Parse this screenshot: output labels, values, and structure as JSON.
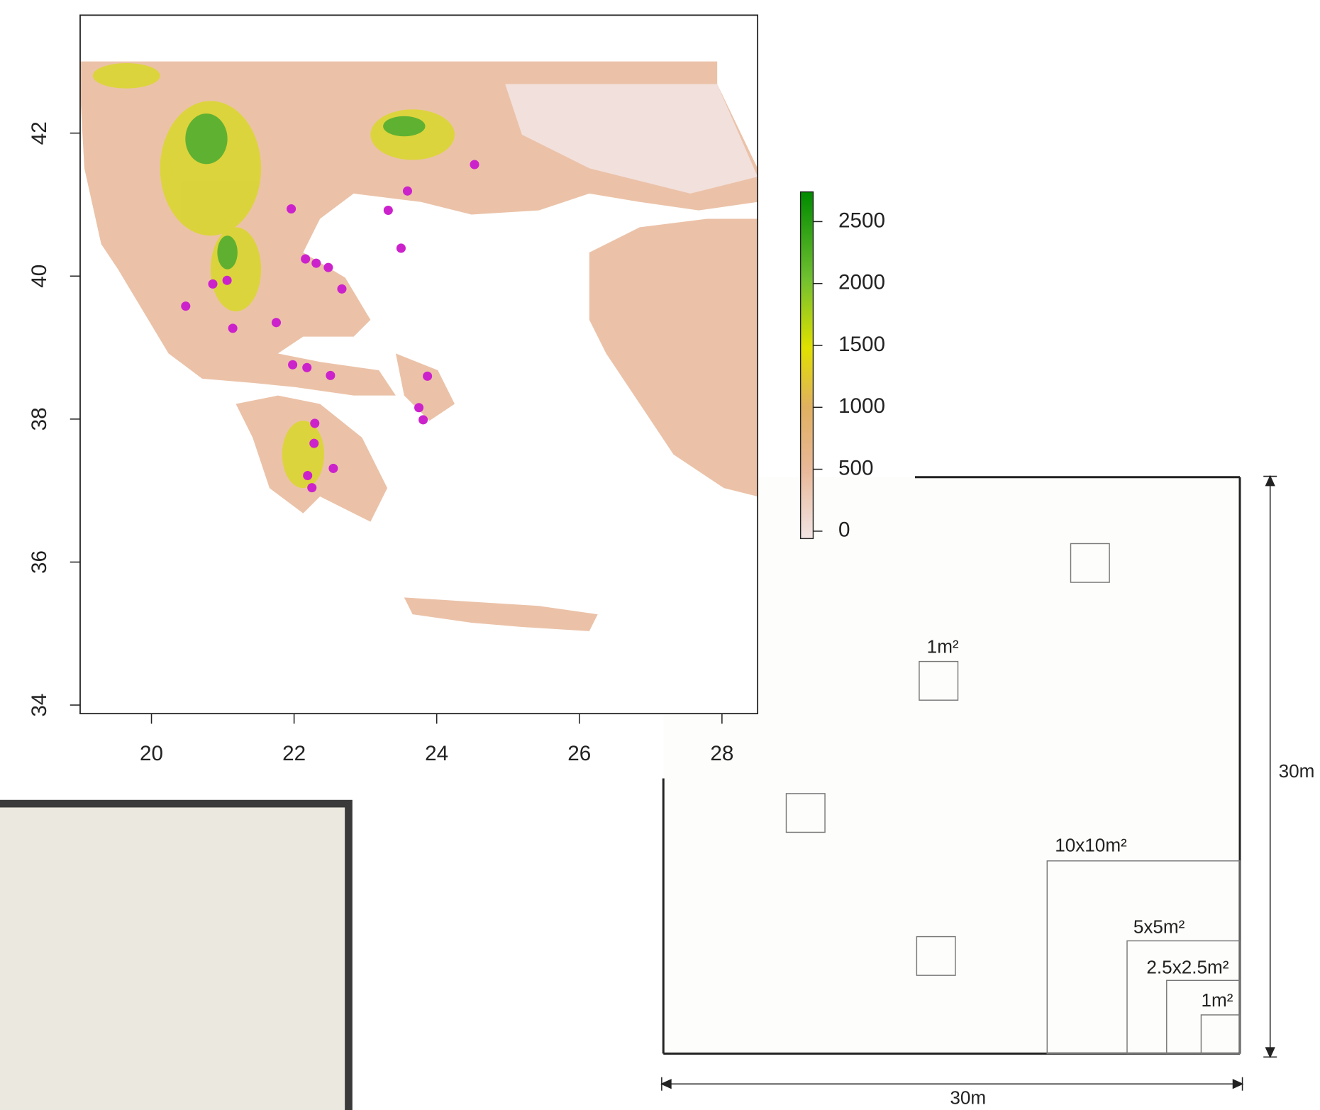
{
  "map": {
    "xlim": [
      19,
      28.5
    ],
    "ylim": [
      33.88,
      43.65
    ],
    "xticks": [
      20,
      22,
      24,
      26,
      28
    ],
    "yticks": [
      34,
      36,
      38,
      40,
      42
    ],
    "points": {
      "color": "#cc22cc",
      "lon": [
        24.53,
        23.59,
        21.96,
        23.32,
        23.5,
        22.16,
        22.31,
        22.48,
        20.86,
        21.06,
        22.67,
        20.48,
        21.14,
        21.75,
        21.98,
        22.18,
        22.51,
        23.87,
        23.75,
        23.81,
        22.29,
        22.28,
        22.55,
        22.19,
        22.25
      ],
      "lat": [
        41.56,
        41.19,
        40.94,
        40.92,
        40.39,
        40.24,
        40.18,
        40.12,
        39.89,
        39.94,
        39.82,
        39.58,
        39.27,
        39.35,
        38.76,
        38.72,
        38.61,
        38.6,
        38.16,
        37.99,
        37.94,
        37.66,
        37.31,
        37.21,
        37.04
      ]
    },
    "legend": {
      "lim": [
        -60,
        2740
      ],
      "ticks": [
        0,
        500,
        1000,
        1500,
        2000,
        2500
      ]
    }
  },
  "diagram": {
    "labels": [
      "1m²",
      "10x10m²",
      "5x5m²",
      "2.5x2.5m²",
      "1m²"
    ],
    "width_label": "30m",
    "height_label": "30m"
  }
}
